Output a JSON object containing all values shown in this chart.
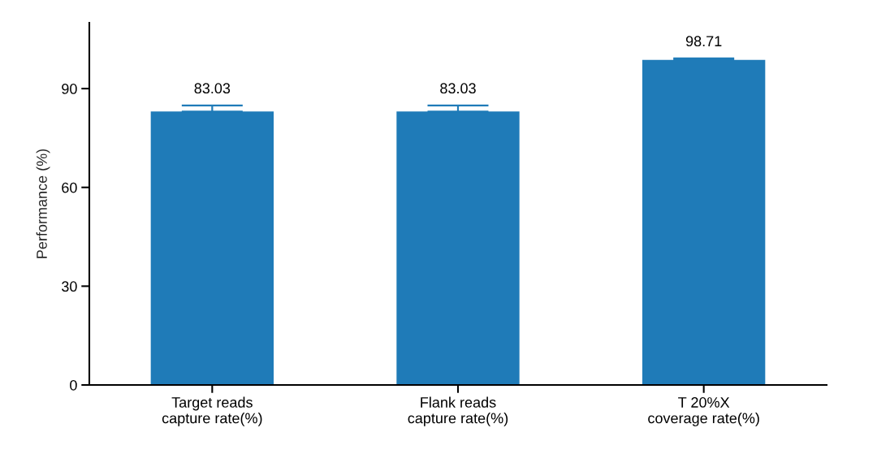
{
  "chart_data": {
    "type": "bar",
    "ylabel": "Performance (%)",
    "categories": [
      "Target reads\ncapture rate(%)",
      "Flank reads\ncapture rate(%)",
      "T 20%X\ncoverage rate(%)"
    ],
    "values": [
      83.03,
      83.03,
      98.71
    ],
    "color": "#1f7bb8",
    "errors": [
      [
        83.03,
        84.9
      ],
      [
        83.03,
        84.9
      ],
      [
        98.71,
        99.2
      ]
    ],
    "ylim": [
      0,
      110
    ],
    "yticks": [
      0,
      30,
      60,
      90
    ],
    "grid": false,
    "data_labels": true
  }
}
